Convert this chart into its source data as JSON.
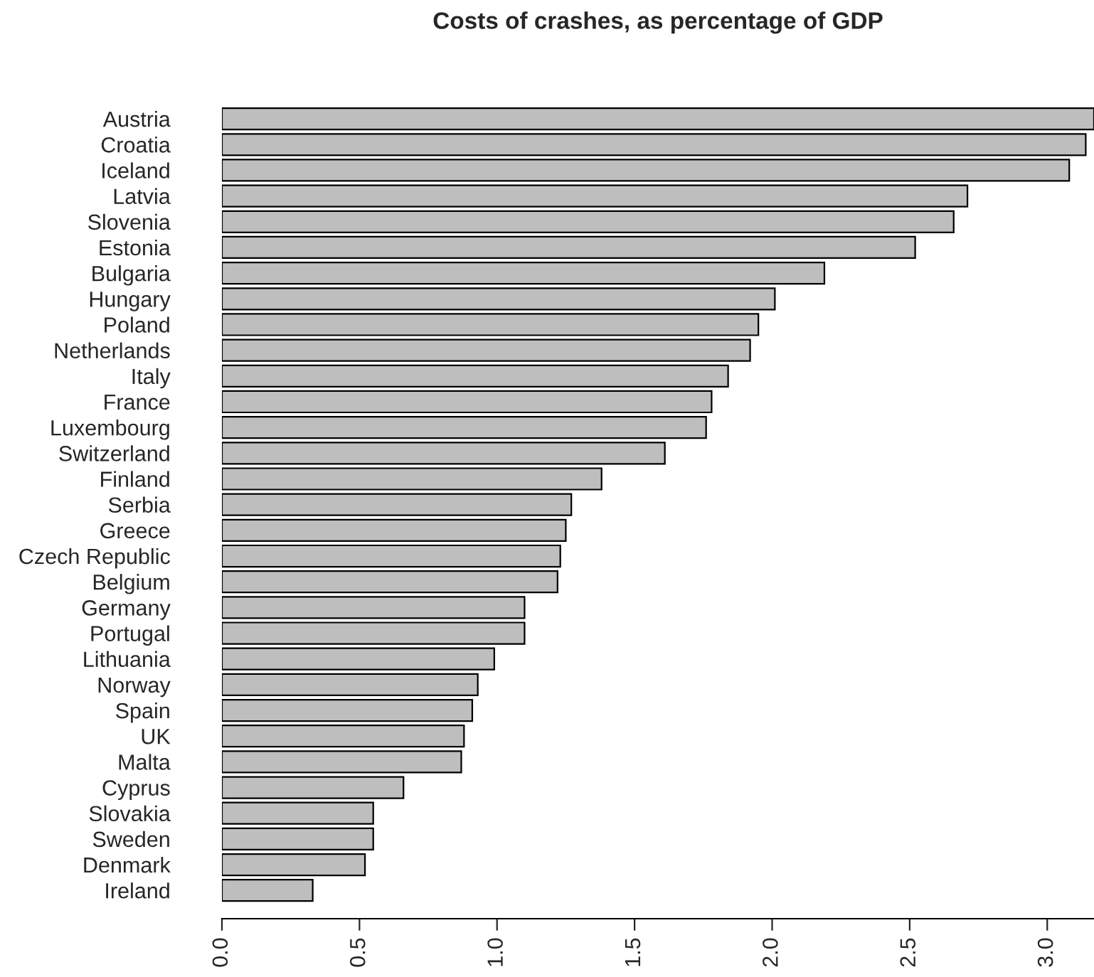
{
  "chart_data": {
    "type": "bar",
    "orientation": "horizontal",
    "title": "Costs of crashes, as percentage of GDP",
    "categories": [
      "Austria",
      "Croatia",
      "Iceland",
      "Latvia",
      "Slovenia",
      "Estonia",
      "Bulgaria",
      "Hungary",
      "Poland",
      "Netherlands",
      "Italy",
      "France",
      "Luxembourg",
      "Switzerland",
      "Finland",
      "Serbia",
      "Greece",
      "Czech Republic",
      "Belgium",
      "Germany",
      "Portugal",
      "Lithuania",
      "Norway",
      "Spain",
      "UK",
      "Malta",
      "Cyprus",
      "Slovakia",
      "Sweden",
      "Denmark",
      "Ireland"
    ],
    "values": [
      3.17,
      3.14,
      3.08,
      2.71,
      2.66,
      2.52,
      2.19,
      2.01,
      1.95,
      1.92,
      1.84,
      1.78,
      1.76,
      1.61,
      1.38,
      1.27,
      1.25,
      1.23,
      1.22,
      1.1,
      1.1,
      0.99,
      0.93,
      0.91,
      0.88,
      0.87,
      0.66,
      0.55,
      0.55,
      0.52,
      0.33
    ],
    "color": "#bebebe",
    "xlim": [
      0,
      3.17
    ],
    "xticks": [
      {
        "value": 0,
        "label": "0.0"
      },
      {
        "value": 0.5,
        "label": "0.5"
      },
      {
        "value": 1,
        "label": "1.0"
      },
      {
        "value": 1.5,
        "label": "1.5"
      },
      {
        "value": 2,
        "label": "2.0"
      },
      {
        "value": 2.5,
        "label": "2.5"
      },
      {
        "value": 3,
        "label": "3.0"
      }
    ],
    "grid": false,
    "legend": false
  }
}
